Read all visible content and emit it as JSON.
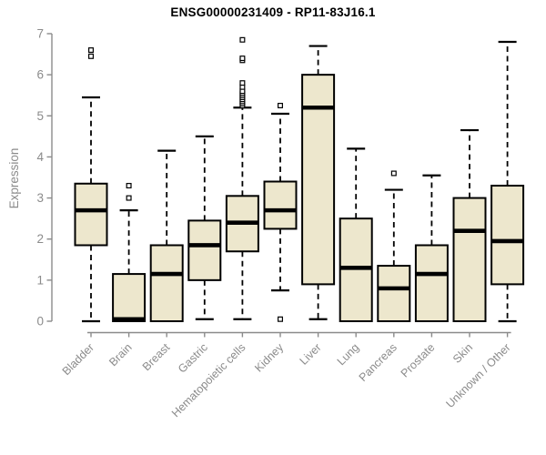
{
  "title": "ENSG00000231409 - RP11-83J16.1",
  "colors": {
    "box_fill": "#EDE7CD",
    "box_border": "#000000",
    "median": "#000000",
    "axis": "#8b8b8b",
    "title": "#000000",
    "background": "#ffffff"
  },
  "chart_data": {
    "type": "boxplot",
    "title": "ENSG00000231409 - RP11-83J16.1",
    "xlabel": "",
    "ylabel": "Expression",
    "ylim": [
      0,
      7
    ],
    "yticks": [
      0,
      1,
      2,
      3,
      4,
      5,
      6,
      7
    ],
    "grid": false,
    "legend": false,
    "categories": [
      "Bladder",
      "Brain",
      "Breast",
      "Gastric",
      "Hematopoietic cells",
      "Kidney",
      "Liver",
      "Lung",
      "Pancreas",
      "Prostate",
      "Skin",
      "Unknown / Other"
    ],
    "series": [
      {
        "name": "Bladder",
        "whisker_low": 0.0,
        "q1": 1.85,
        "median": 2.7,
        "q3": 3.35,
        "whisker_high": 5.45,
        "outliers": [
          6.45,
          6.6
        ]
      },
      {
        "name": "Brain",
        "whisker_low": 0.0,
        "q1": 0.0,
        "median": 0.05,
        "q3": 1.15,
        "whisker_high": 2.7,
        "outliers": [
          3.0,
          3.3
        ]
      },
      {
        "name": "Breast",
        "whisker_low": 0.0,
        "q1": 0.0,
        "median": 1.15,
        "q3": 1.85,
        "whisker_high": 4.15,
        "outliers": []
      },
      {
        "name": "Gastric",
        "whisker_low": 0.05,
        "q1": 1.0,
        "median": 1.85,
        "q3": 2.45,
        "whisker_high": 4.5,
        "outliers": []
      },
      {
        "name": "Hematopoietic cells",
        "whisker_low": 0.05,
        "q1": 1.7,
        "median": 2.4,
        "q3": 3.05,
        "whisker_high": 5.2,
        "outliers": [
          5.25,
          5.3,
          5.35,
          5.4,
          5.45,
          5.5,
          5.55,
          5.6,
          5.7,
          5.8,
          6.35,
          6.4,
          6.85
        ]
      },
      {
        "name": "Kidney",
        "whisker_low": 0.75,
        "q1": 2.25,
        "median": 2.7,
        "q3": 3.4,
        "whisker_high": 5.05,
        "outliers": [
          5.25,
          0.05
        ]
      },
      {
        "name": "Liver",
        "whisker_low": 0.05,
        "q1": 0.9,
        "median": 5.2,
        "q3": 6.0,
        "whisker_high": 6.7,
        "outliers": []
      },
      {
        "name": "Lung",
        "whisker_low": 0.0,
        "q1": 0.0,
        "median": 1.3,
        "q3": 2.5,
        "whisker_high": 4.2,
        "outliers": []
      },
      {
        "name": "Pancreas",
        "whisker_low": 0.0,
        "q1": 0.0,
        "median": 0.8,
        "q3": 1.35,
        "whisker_high": 3.2,
        "outliers": [
          3.6
        ]
      },
      {
        "name": "Prostate",
        "whisker_low": 0.0,
        "q1": 0.0,
        "median": 1.15,
        "q3": 1.85,
        "whisker_high": 3.55,
        "outliers": []
      },
      {
        "name": "Skin",
        "whisker_low": 0.0,
        "q1": 0.0,
        "median": 2.2,
        "q3": 3.0,
        "whisker_high": 4.65,
        "outliers": []
      },
      {
        "name": "Unknown / Other",
        "whisker_low": 0.0,
        "q1": 0.9,
        "median": 1.95,
        "q3": 3.3,
        "whisker_high": 6.8,
        "outliers": []
      }
    ]
  }
}
